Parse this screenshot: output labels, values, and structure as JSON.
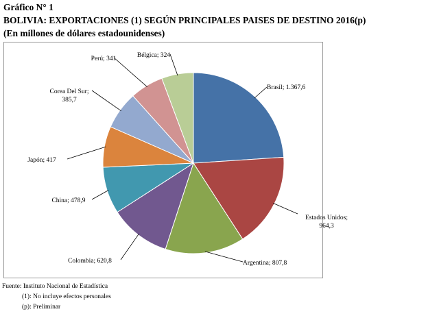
{
  "header": {
    "figure_label": "Gráfico N° 1",
    "title": "BOLIVIA: EXPORTACIONES (1) SEGÚN PRINCIPALES PAISES DE DESTINO 2016(p)",
    "subtitle": "(En millones de dólares estadounidenses)"
  },
  "notes": {
    "source": "Fuente: Instituto Nacional de Estadística",
    "note1": "(1): No incluye efectos personales",
    "note2": "(p): Preliminar"
  },
  "chart_data": {
    "type": "pie",
    "title": "BOLIVIA: EXPORTACIONES (1) SEGÚN PRINCIPALES PAISES DE DESTINO 2016(p)",
    "units": "En millones de dólares estadounidenses",
    "slices": [
      {
        "name": "Brasil",
        "value": 1367.6,
        "label": "Brasil; 1.367,6",
        "color": "#4572A7"
      },
      {
        "name": "Estados Unidos",
        "value": 964.3,
        "label": "Estados Unidos; 964,3",
        "color": "#AA4643"
      },
      {
        "name": "Argentina",
        "value": 807.8,
        "label": "Argentina; 807,8",
        "color": "#89A54E"
      },
      {
        "name": "Colombia",
        "value": 620.8,
        "label": "Colombia; 620,8",
        "color": "#71588F"
      },
      {
        "name": "China",
        "value": 478.9,
        "label": "China; 478,9",
        "color": "#4198AF"
      },
      {
        "name": "Japón",
        "value": 417,
        "label": "Japón; 417",
        "color": "#DB843D"
      },
      {
        "name": "Corea Del Sur",
        "value": 385.7,
        "label": "Corea Del Sur; 385,7",
        "color": "#93A9CF"
      },
      {
        "name": "Perú",
        "value": 341,
        "label": "Perú; 341",
        "color": "#D19392"
      },
      {
        "name": "Bélgica",
        "value": 324,
        "label": "Bélgica; 324",
        "color": "#B9CD96"
      }
    ]
  }
}
